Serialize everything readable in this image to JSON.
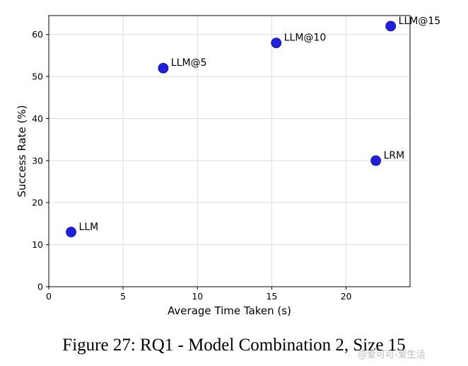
{
  "chart_data": {
    "type": "scatter",
    "title": "",
    "xlabel": "Average Time Taken (s)",
    "ylabel": "Success Rate (%)",
    "xlim": [
      0,
      24.3
    ],
    "ylim": [
      0,
      64.5
    ],
    "xticks": [
      0,
      5,
      10,
      15,
      20
    ],
    "yticks": [
      0,
      10,
      20,
      30,
      40,
      50,
      60
    ],
    "grid": true,
    "marker_color": "#1f1fe0",
    "points": [
      {
        "label": "LLM",
        "x": 1.5,
        "y": 13
      },
      {
        "label": "LLM@5",
        "x": 7.7,
        "y": 52
      },
      {
        "label": "LLM@10",
        "x": 15.3,
        "y": 58
      },
      {
        "label": "LLM@15",
        "x": 23.0,
        "y": 62
      },
      {
        "label": "LRM",
        "x": 22.0,
        "y": 30
      }
    ]
  },
  "caption": "Figure 27: RQ1 - Model Combination 2, Size 15",
  "watermark": "@爱可可-爱生活"
}
